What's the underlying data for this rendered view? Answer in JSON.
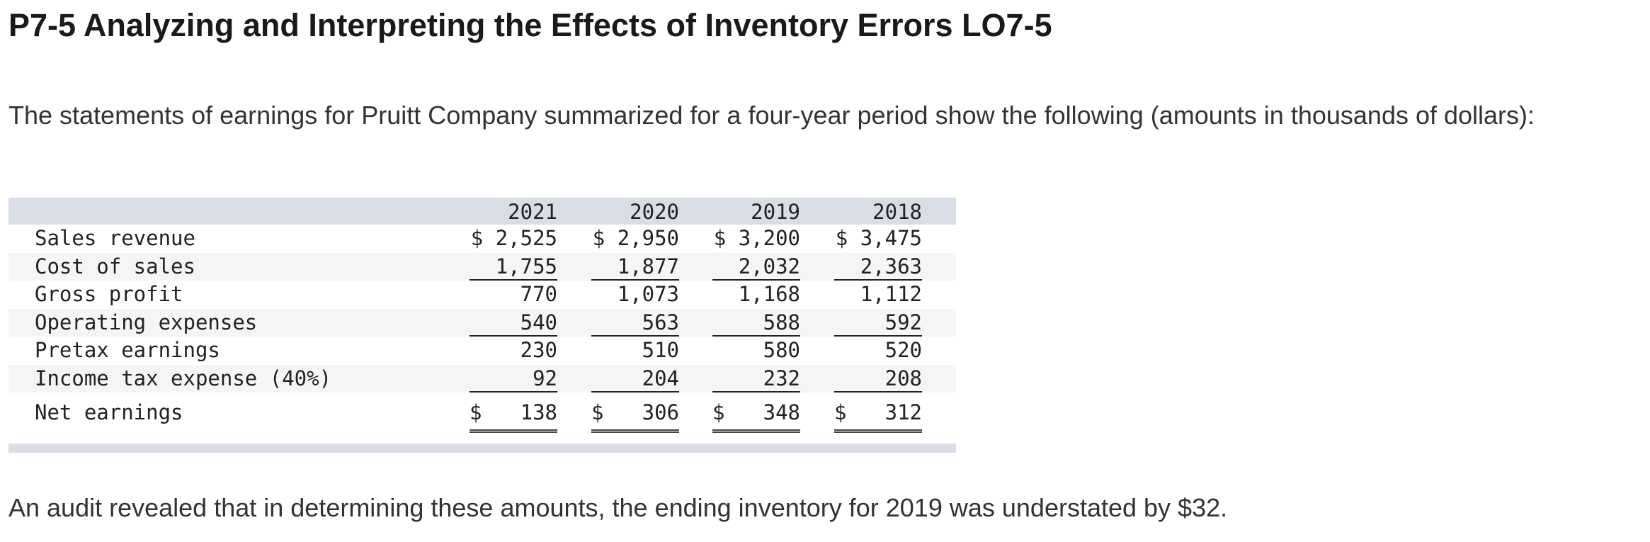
{
  "title": "P7-5 Analyzing and Interpreting the Effects of Inventory Errors LO7-5",
  "intro": "The statements of earnings for Pruitt Company summarized for a four-year period show the following (amounts in thousands of dollars):",
  "table": {
    "years": [
      "2021",
      "2020",
      "2019",
      "2018"
    ],
    "rows": [
      {
        "label": "Sales revenue",
        "values": [
          "$ 2,525",
          "$ 2,950",
          "$ 3,200",
          "$ 3,475"
        ]
      },
      {
        "label": "Cost of sales",
        "values": [
          "1,755",
          "1,877",
          "2,032",
          "2,363"
        ]
      },
      {
        "label": "Gross profit",
        "values": [
          "770",
          "1,073",
          "1,168",
          "1,112"
        ]
      },
      {
        "label": "Operating expenses",
        "values": [
          "540",
          "563",
          "588",
          "592"
        ]
      },
      {
        "label": "Pretax earnings",
        "values": [
          "230",
          "510",
          "580",
          "520"
        ]
      },
      {
        "label": "Income tax expense (40%)",
        "values": [
          "92",
          "204",
          "232",
          "208"
        ]
      },
      {
        "label": "Net earnings",
        "currency": "$",
        "values": [
          "138",
          "306",
          "348",
          "312"
        ]
      }
    ]
  },
  "audit": "An audit revealed that in determining these amounts, the ending inventory for 2019 was understated by $32."
}
